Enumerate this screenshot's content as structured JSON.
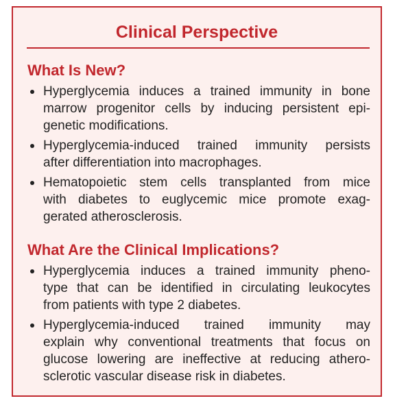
{
  "title": "Clinical Perspective",
  "sections": [
    {
      "heading": "What Is New?",
      "bullets": [
        {
          "lines": [
            "Hyperglycemia induces a trained immunity in bone",
            "marrow progenitor cells by inducing persistent epi-",
            "genetic modifications."
          ]
        },
        {
          "lines": [
            "Hyperglycemia-induced trained immunity persists",
            "after differentiation into macrophages."
          ]
        },
        {
          "lines": [
            "Hematopoietic stem cells transplanted from mice",
            "with diabetes to euglycemic mice promote exag-",
            "gerated atherosclerosis."
          ]
        }
      ]
    },
    {
      "heading": "What Are the Clinical Implications?",
      "bullets": [
        {
          "lines": [
            "Hyperglycemia induces a trained immunity pheno-",
            "type that can be identified in circulating leukocytes",
            "from patients with type 2 diabetes."
          ]
        },
        {
          "lines": [
            "Hyperglycemia-induced trained immunity may",
            "explain why conventional treatments that focus on",
            "glucose lowering are ineffective at reducing athero-",
            "sclerotic vascular disease risk in diabetes."
          ]
        }
      ]
    }
  ]
}
